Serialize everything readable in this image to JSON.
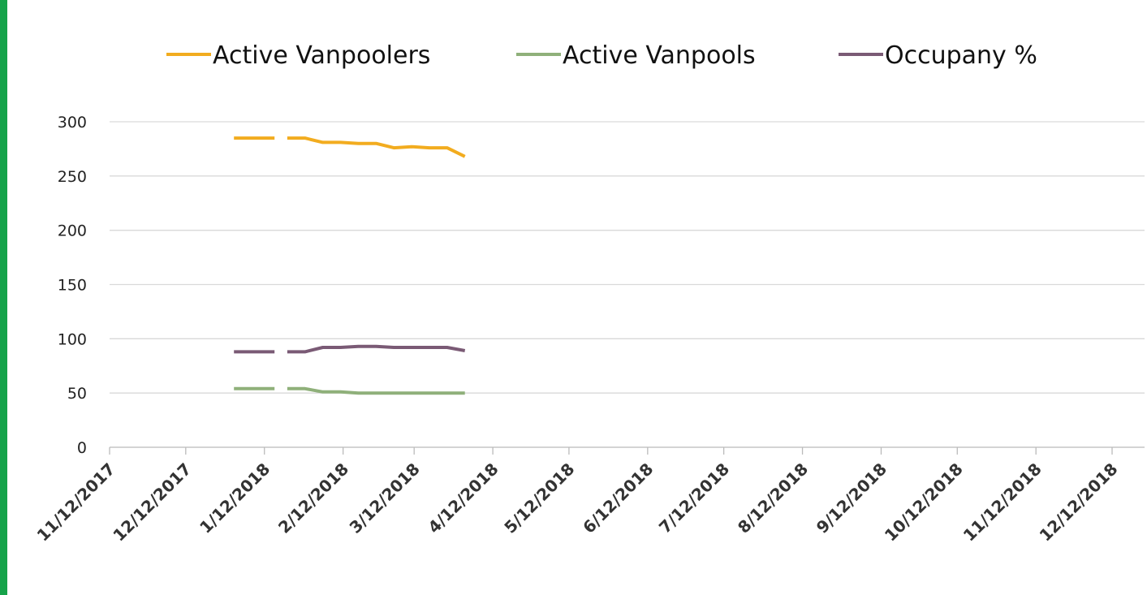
{
  "chart_data": {
    "type": "line",
    "x": [
      "12/31/2017",
      "1/16/2018",
      "1/19/2018",
      "1/21/2018",
      "1/28/2018",
      "2/4/2018",
      "2/11/2018",
      "2/18/2018",
      "2/25/2018",
      "3/4/2018",
      "3/11/2018",
      "3/18/2018",
      "3/25/2018",
      "4/1/2018"
    ],
    "series": [
      {
        "name": "Active Vanpoolers",
        "color": "#f2ac1f",
        "values": [
          285,
          285,
          null,
          285,
          285,
          281,
          281,
          280,
          280,
          276,
          277,
          276,
          276,
          268
        ]
      },
      {
        "name": "Active Vanpools",
        "color": "#8fb07a",
        "values": [
          54,
          54,
          null,
          54,
          54,
          51,
          51,
          50,
          50,
          50,
          50,
          50,
          50,
          50
        ]
      },
      {
        "name": "Occupany %",
        "color": "#7a5a75",
        "values": [
          88,
          88,
          null,
          88,
          88,
          92,
          92,
          93,
          93,
          92,
          92,
          92,
          92,
          89
        ]
      }
    ],
    "xlim": [
      "11/12/2017",
      "12/12/2018"
    ],
    "xticks": [
      "11/12/2017",
      "12/12/2017",
      "1/12/2018",
      "2/12/2018",
      "3/12/2018",
      "4/12/2018",
      "5/12/2018",
      "6/12/2018",
      "7/12/2018",
      "8/12/2018",
      "9/12/2018",
      "10/12/2018",
      "11/12/2018",
      "12/12/2018"
    ],
    "ylim": [
      0,
      300
    ],
    "yticks": [
      0,
      50,
      100,
      150,
      200,
      250,
      300
    ],
    "grid": true,
    "legend": "top"
  }
}
